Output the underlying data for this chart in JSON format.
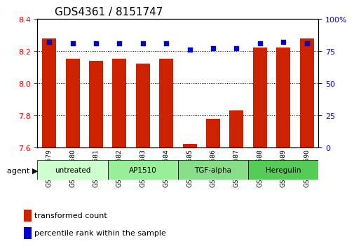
{
  "title": "GDS4361 / 8151747",
  "samples": [
    "GSM554579",
    "GSM554580",
    "GSM554581",
    "GSM554582",
    "GSM554583",
    "GSM554584",
    "GSM554585",
    "GSM554586",
    "GSM554587",
    "GSM554588",
    "GSM554589",
    "GSM554590"
  ],
  "bar_values": [
    8.28,
    8.15,
    8.14,
    8.15,
    8.12,
    8.15,
    7.62,
    7.78,
    7.83,
    8.22,
    8.22,
    8.28
  ],
  "dot_values": [
    82,
    81,
    81,
    81,
    81,
    81,
    76,
    77,
    77,
    81,
    82,
    81
  ],
  "bar_color": "#cc2200",
  "dot_color": "#0000cc",
  "ylim_left": [
    7.6,
    8.4
  ],
  "ylim_right": [
    0,
    100
  ],
  "yticks_left": [
    7.6,
    7.8,
    8.0,
    8.2,
    8.4
  ],
  "yticks_right": [
    0,
    25,
    50,
    75,
    100
  ],
  "ytick_labels_right": [
    "0",
    "25",
    "50",
    "75",
    "100%"
  ],
  "grid_values": [
    7.8,
    8.0,
    8.2
  ],
  "agents": [
    {
      "label": "untreated",
      "start": 0,
      "end": 3,
      "color": "#ccffcc"
    },
    {
      "label": "AP1510",
      "start": 3,
      "end": 6,
      "color": "#99ee99"
    },
    {
      "label": "TGF-alpha",
      "start": 6,
      "end": 9,
      "color": "#88dd88"
    },
    {
      "label": "Heregulin",
      "start": 9,
      "end": 12,
      "color": "#55cc55"
    }
  ],
  "legend_bar_label": "transformed count",
  "legend_dot_label": "percentile rank within the sample",
  "agent_label": "agent",
  "bar_width": 0.6
}
